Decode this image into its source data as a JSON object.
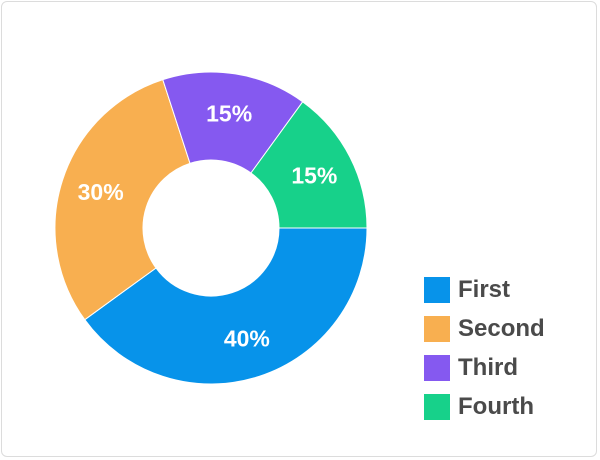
{
  "chart_data": {
    "type": "pie",
    "donut": true,
    "title": "",
    "categories": [
      "First",
      "Second",
      "Third",
      "Fourth"
    ],
    "values": [
      40,
      30,
      15,
      15
    ],
    "value_labels": [
      "40%",
      "30%",
      "15%",
      "15%"
    ],
    "colors": [
      "#0793ea",
      "#f8af50",
      "#8559f0",
      "#17d18a"
    ],
    "legend_position": "bottom-right"
  },
  "legend": {
    "items": [
      {
        "label": "First",
        "color": "#0793ea"
      },
      {
        "label": "Second",
        "color": "#f8af50"
      },
      {
        "label": "Third",
        "color": "#8559f0"
      },
      {
        "label": "Fourth",
        "color": "#17d18a"
      }
    ]
  }
}
